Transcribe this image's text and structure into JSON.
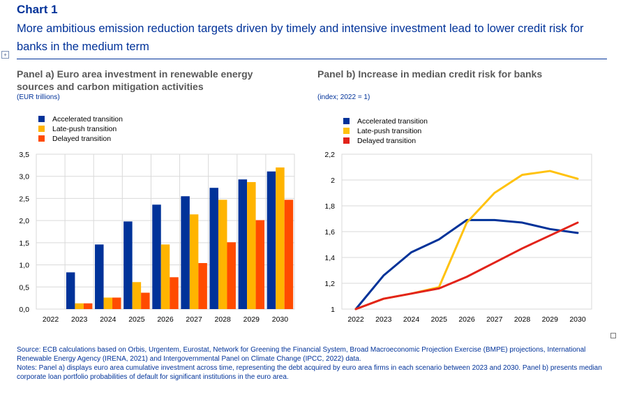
{
  "header": {
    "label": "Chart 1",
    "title": "More ambitious emission reduction targets driven by timely and intensive investment lead to lower credit risk for banks in the medium term"
  },
  "footer": {
    "source": "Source: ECB calculations based on Orbis, Urgentem, Eurostat, Network for Greening the Financial System, Broad Macroeconomic Projection Exercise (BMPE) projections, International Renewable Energy Agency (IRENA, 2021) and Intergovernmental Panel on Climate Change (IPCC, 2022) data.",
    "notes": "Notes: Panel a) displays euro area cumulative investment across time, representing the debt acquired by euro area firms in each scenario between 2023 and 2030. Panel b) presents median corporate loan portfolio probabilities of default for significant institutions in the euro area."
  },
  "chart_data": [
    {
      "type": "bar",
      "title": "Panel a) Euro area investment in renewable energy sources and carbon mitigation activities",
      "unit": "(EUR trillions)",
      "categories": [
        "2022",
        "2023",
        "2024",
        "2025",
        "2026",
        "2027",
        "2028",
        "2029",
        "2030"
      ],
      "y_tick_labels": [
        "0,0",
        "0,5",
        "1,0",
        "1,5",
        "2,0",
        "2,5",
        "3,0",
        "3,5"
      ],
      "ylim": [
        0,
        3.5
      ],
      "grid": true,
      "legend_position": "top-left",
      "series": [
        {
          "name": "Accelerated transition",
          "color": "#003299",
          "values": [
            0,
            0.83,
            1.46,
            1.98,
            2.36,
            2.55,
            2.74,
            2.93,
            3.11
          ]
        },
        {
          "name": "Late-push transition",
          "color": "#FFB400",
          "values": [
            0,
            0.13,
            0.26,
            0.61,
            1.46,
            2.14,
            2.47,
            2.87,
            3.2
          ]
        },
        {
          "name": "Delayed transition",
          "color": "#FF4B00",
          "values": [
            0,
            0.13,
            0.26,
            0.37,
            0.72,
            1.04,
            1.51,
            2.01,
            2.47
          ]
        }
      ]
    },
    {
      "type": "line",
      "title": "Panel b) Increase in median credit risk for banks",
      "unit": "(index; 2022 = 1)",
      "categories": [
        "2022",
        "2023",
        "2024",
        "2025",
        "2026",
        "2027",
        "2028",
        "2029",
        "2030"
      ],
      "y_tick_labels": [
        "1",
        "1,2",
        "1,4",
        "1,6",
        "1,8",
        "2",
        "2,2"
      ],
      "ylim": [
        1,
        2.2
      ],
      "grid": true,
      "legend_position": "top-left",
      "series": [
        {
          "name": "Accelerated transition",
          "color": "#003299",
          "values": [
            1,
            1.26,
            1.44,
            1.54,
            1.69,
            1.69,
            1.67,
            1.62,
            1.59
          ]
        },
        {
          "name": "Late-push transition",
          "color": "#FFC20E",
          "values": [
            1,
            1.08,
            1.12,
            1.17,
            1.67,
            1.9,
            2.04,
            2.07,
            2.01
          ]
        },
        {
          "name": "Delayed transition",
          "color": "#E2231A",
          "values": [
            1,
            1.08,
            1.12,
            1.16,
            1.25,
            1.36,
            1.47,
            1.57,
            1.67
          ]
        }
      ]
    }
  ]
}
